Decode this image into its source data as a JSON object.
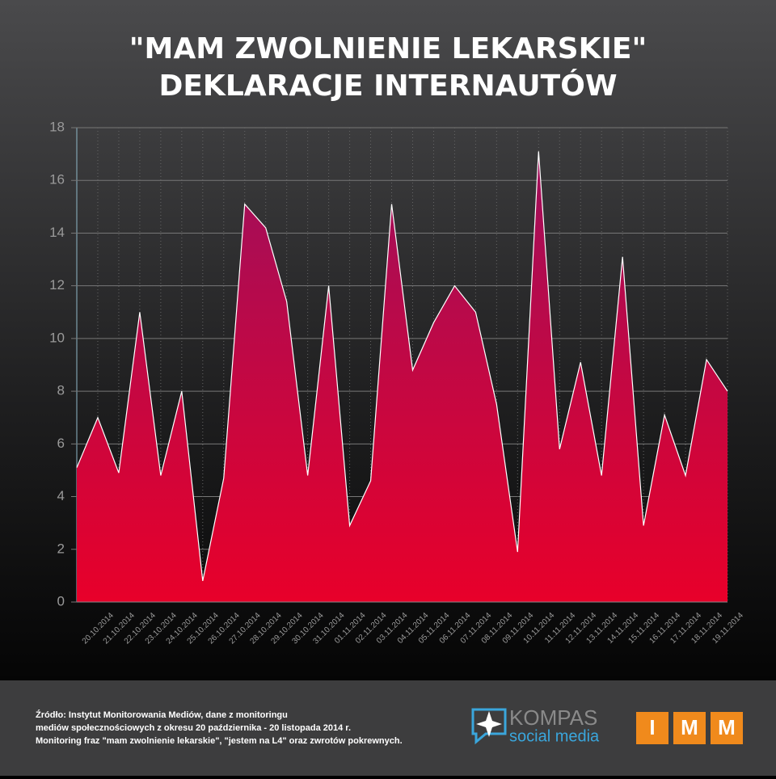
{
  "chart_data": {
    "type": "area",
    "title": "\"MAM ZWOLNIENIE LEKARSKIE\"",
    "subtitle": "DEKLARACJE INTERNAUTÓW",
    "categories": [
      null,
      "20.10.2014",
      "21.10.2014",
      "22.10.2014",
      "23.10.2014",
      "24.10.2014",
      "25.10.2014",
      "26.10.2014",
      "27.10.2014",
      "28.10.2014",
      "29.10.2014",
      "30.10.2014",
      "31.10.2014",
      "01.11.2014",
      "02.11.2014",
      "03.11.2014",
      "04.11.2014",
      "05.11.2014",
      "06.11.2014",
      "07.11.2014",
      "08.11.2014",
      "09.11.2014",
      "10.11.2014",
      "11.11.2014",
      "12.11.2014",
      "13.11.2014",
      "14.11.2014",
      "15.11.2014",
      "16.11.2014",
      "17.11.2014",
      "18.11.2014",
      "19.11.2014"
    ],
    "values": [
      5.1,
      7,
      4.9,
      11,
      4.8,
      8,
      0.8,
      4.7,
      15.1,
      14.2,
      11.4,
      4.8,
      12,
      2.9,
      4.6,
      15.1,
      8.8,
      10.6,
      12,
      11,
      7.5,
      1.9,
      17.1,
      5.8,
      9.1,
      4.8,
      13.1,
      2.9,
      7.1,
      4.8,
      9.2,
      8
    ],
    "color_top": "#9e0f5c",
    "color_bottom": "#e8002a",
    "line_color": "#ffffff",
    "ylim": [
      0,
      18
    ],
    "yticks": [
      0,
      2,
      4,
      6,
      8,
      10,
      12,
      14,
      16,
      18
    ],
    "grid": true,
    "source": [
      "Źródło: Instytut Monitorowania Mediów, dane z monitoringu",
      "mediów społecznościowych z okresu 20 października - 20 listopada 2014 r.",
      "Monitoring fraz \"mam zwolnienie lekarskie\", \"jestem na L4\"  oraz zwrotów pokrewnych."
    ],
    "logos": {
      "kompas": "KOMPAS",
      "kompas_sub": "social media",
      "imm": [
        "I",
        "M",
        "M"
      ]
    }
  }
}
